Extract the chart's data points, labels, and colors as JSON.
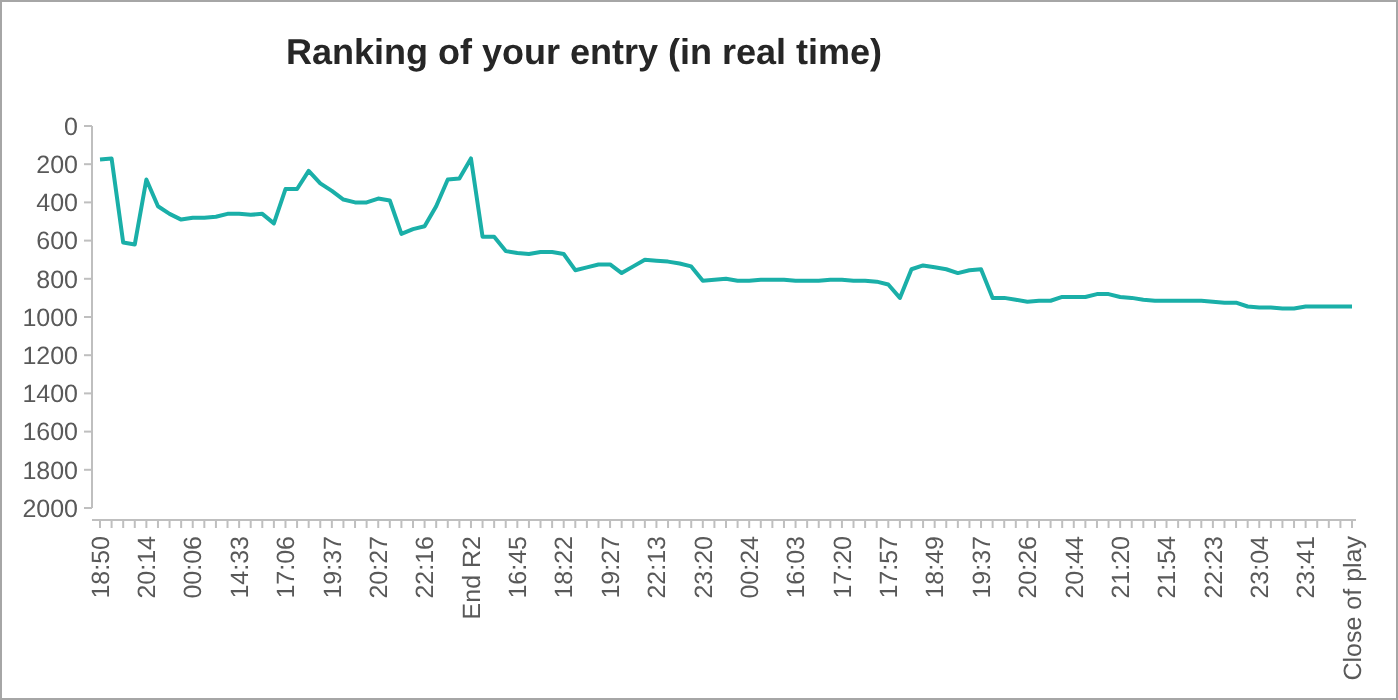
{
  "chart_data": {
    "type": "line",
    "title": "Ranking of your entry (in real time)",
    "categories": [
      "18:50",
      null,
      null,
      null,
      "20:14",
      null,
      null,
      null,
      "00:06",
      null,
      null,
      null,
      "14:33",
      null,
      null,
      null,
      "17:06",
      null,
      null,
      null,
      "19:37",
      null,
      null,
      null,
      "20:27",
      null,
      null,
      null,
      "22:16",
      null,
      null,
      null,
      "End R2",
      null,
      null,
      null,
      "16:45",
      null,
      null,
      null,
      "18:22",
      null,
      null,
      null,
      "19:27",
      null,
      null,
      null,
      "22:13",
      null,
      null,
      null,
      "23:20",
      null,
      null,
      null,
      "00:24",
      null,
      null,
      null,
      "16:03",
      null,
      null,
      null,
      "17:20",
      null,
      null,
      null,
      "17:57",
      null,
      null,
      null,
      "18:49",
      null,
      null,
      null,
      "19:37",
      null,
      null,
      null,
      "20:26",
      null,
      null,
      null,
      "20:44",
      null,
      null,
      null,
      "21:20",
      null,
      null,
      null,
      "21:54",
      null,
      null,
      null,
      "22:23",
      null,
      null,
      null,
      "23:04",
      null,
      null,
      null,
      "23:41",
      null,
      null,
      null,
      "Close of play"
    ],
    "series": [
      {
        "color": "#1aafa8",
        "values": [
          175,
          170,
          610,
          620,
          280,
          420,
          460,
          490,
          480,
          480,
          475,
          460,
          460,
          465,
          460,
          510,
          330,
          330,
          235,
          300,
          340,
          385,
          400,
          400,
          380,
          390,
          565,
          540,
          525,
          420,
          280,
          275,
          170,
          580,
          580,
          655,
          665,
          670,
          660,
          660,
          670,
          755,
          740,
          725,
          725,
          770,
          735,
          700,
          705,
          710,
          720,
          735,
          810,
          805,
          800,
          810,
          810,
          805,
          805,
          805,
          810,
          810,
          810,
          805,
          805,
          810,
          810,
          815,
          830,
          900,
          750,
          730,
          740,
          750,
          770,
          755,
          750,
          900,
          900,
          910,
          920,
          915,
          915,
          895,
          895,
          895,
          880,
          880,
          895,
          900,
          910,
          915,
          915,
          915,
          915,
          915,
          920,
          925,
          925,
          945,
          950,
          950,
          955,
          955,
          945,
          945,
          945,
          945,
          945
        ]
      }
    ],
    "ylim": [
      2000,
      0
    ],
    "yticks": [
      0,
      200,
      400,
      600,
      800,
      1000,
      1200,
      1400,
      1600,
      1800,
      2000
    ],
    "grid": false,
    "marker": "none",
    "line_style": "solid"
  }
}
